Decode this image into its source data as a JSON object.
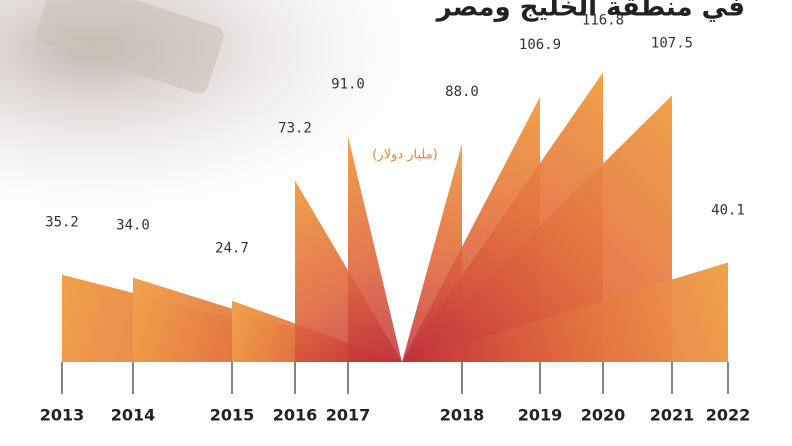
{
  "chart_data": {
    "type": "fan",
    "title": "في منطقة الخليج ومصر",
    "unit_label": "(مليار دولار)",
    "categories": [
      "2013",
      "2014",
      "2015",
      "2016",
      "2017",
      "2018",
      "2019",
      "2020",
      "2021",
      "2022"
    ],
    "values": [
      35.2,
      34.0,
      24.7,
      73.2,
      91.0,
      88.0,
      106.9,
      116.8,
      107.5,
      40.1
    ],
    "value_labels": [
      "35.2",
      "34.0",
      "24.7",
      "73.2",
      "91.0",
      "88.0",
      "106.9",
      "116.8",
      "107.5",
      "40.1"
    ],
    "color": "#f0a24a"
  }
}
